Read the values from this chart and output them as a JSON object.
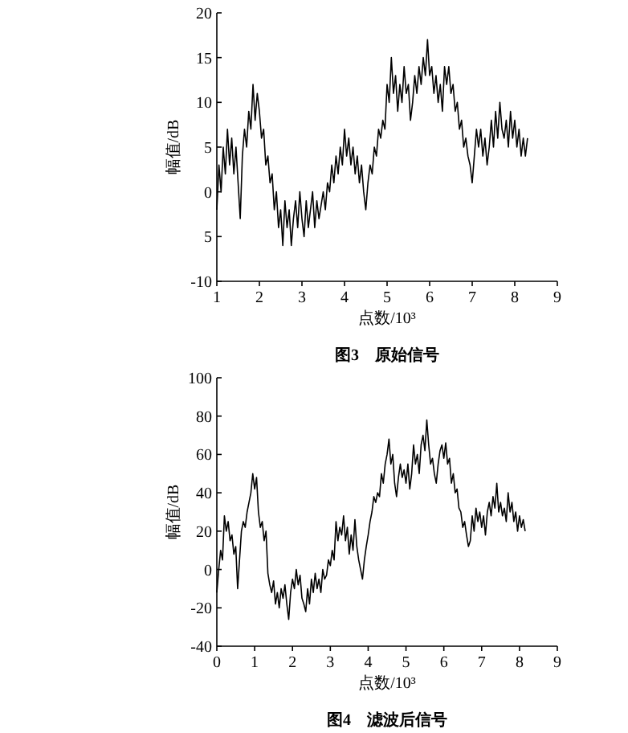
{
  "chart_data": [
    {
      "type": "line",
      "title": "图3　原始信号",
      "xlabel": "点数/10³",
      "ylabel": "幅值/dB",
      "xlim": [
        1,
        9
      ],
      "xticks": [
        1,
        2,
        3,
        4,
        5,
        6,
        7,
        8,
        9
      ],
      "ylim": [
        -10,
        20
      ],
      "yticks": [
        -10,
        {
          "value": -5,
          "label": "5"
        },
        0,
        5,
        10,
        15,
        20
      ],
      "grid": false,
      "marker": "none",
      "line_style": "solid",
      "series": [
        {
          "color": "#000000",
          "x": [
            1.0,
            1.05,
            1.1,
            1.15,
            1.2,
            1.25,
            1.3,
            1.35,
            1.4,
            1.45,
            1.5,
            1.55,
            1.6,
            1.65,
            1.7,
            1.75,
            1.8,
            1.85,
            1.9,
            1.95,
            2.0,
            2.05,
            2.1,
            2.15,
            2.2,
            2.25,
            2.3,
            2.35,
            2.4,
            2.45,
            2.5,
            2.55,
            2.6,
            2.65,
            2.7,
            2.75,
            2.8,
            2.85,
            2.9,
            2.95,
            3.0,
            3.05,
            3.1,
            3.15,
            3.2,
            3.25,
            3.3,
            3.35,
            3.4,
            3.5,
            3.55,
            3.6,
            3.65,
            3.7,
            3.75,
            3.8,
            3.85,
            3.9,
            3.95,
            4.0,
            4.05,
            4.1,
            4.15,
            4.2,
            4.25,
            4.3,
            4.35,
            4.4,
            4.45,
            4.5,
            4.55,
            4.6,
            4.65,
            4.7,
            4.75,
            4.8,
            4.85,
            4.9,
            4.95,
            5.0,
            5.05,
            5.1,
            5.15,
            5.2,
            5.25,
            5.3,
            5.35,
            5.4,
            5.45,
            5.5,
            5.55,
            5.6,
            5.65,
            5.7,
            5.75,
            5.8,
            5.85,
            5.9,
            5.95,
            6.0,
            6.05,
            6.1,
            6.15,
            6.2,
            6.25,
            6.3,
            6.35,
            6.4,
            6.45,
            6.5,
            6.55,
            6.6,
            6.65,
            6.7,
            6.75,
            6.8,
            6.85,
            6.9,
            6.95,
            7.0,
            7.05,
            7.1,
            7.15,
            7.2,
            7.25,
            7.3,
            7.35,
            7.4,
            7.45,
            7.5,
            7.55,
            7.6,
            7.65,
            7.7,
            7.75,
            7.8,
            7.85,
            7.9,
            7.95,
            8.0,
            8.05,
            8.1,
            8.15,
            8.2,
            8.25,
            8.3
          ],
          "values": [
            -2,
            3,
            0,
            5,
            2,
            7,
            3,
            6,
            2,
            5,
            1,
            -3,
            4,
            7,
            5,
            9,
            7,
            12,
            8,
            11,
            9,
            6,
            7,
            3,
            4,
            1,
            2,
            -2,
            0,
            -4,
            -2,
            -6,
            -1,
            -4,
            -2,
            -6,
            -3,
            -1,
            -4,
            0,
            -3,
            -5,
            -1,
            -4,
            -2,
            0,
            -4,
            -1,
            -3,
            0,
            -2,
            1,
            0,
            3,
            1,
            4,
            2,
            5,
            3,
            7,
            4,
            6,
            3,
            5,
            2,
            4,
            1,
            3,
            0,
            -2,
            1,
            3,
            2,
            5,
            4,
            7,
            6,
            8,
            7,
            12,
            10,
            15,
            11,
            13,
            9,
            12,
            10,
            14,
            11,
            12,
            8,
            10,
            13,
            11,
            14,
            12,
            15,
            13,
            17,
            13,
            14,
            11,
            13,
            10,
            12,
            9,
            14,
            12,
            14,
            11,
            12,
            9,
            10,
            7,
            8,
            5,
            6,
            4,
            3,
            1,
            4,
            7,
            5,
            7,
            4,
            6,
            3,
            5,
            8,
            5,
            9,
            6,
            10,
            7,
            6,
            8,
            5,
            9,
            6,
            8,
            5,
            7,
            4,
            6,
            4,
            6
          ]
        }
      ]
    },
    {
      "type": "line",
      "title": "图4　滤波后信号",
      "xlabel": "点数/10³",
      "ylabel": "幅值/dB",
      "xlim": [
        0,
        9
      ],
      "xticks": [
        0,
        1,
        2,
        3,
        4,
        5,
        6,
        7,
        8,
        9
      ],
      "ylim": [
        -40,
        100
      ],
      "yticks": [
        -40,
        -20,
        0,
        20,
        40,
        60,
        80,
        100
      ],
      "grid": false,
      "marker": "none",
      "line_style": "solid",
      "series": [
        {
          "color": "#000000",
          "x": [
            0,
            0.05,
            0.1,
            0.15,
            0.2,
            0.25,
            0.3,
            0.35,
            0.4,
            0.45,
            0.5,
            0.55,
            0.6,
            0.65,
            0.7,
            0.75,
            0.8,
            0.85,
            0.9,
            0.95,
            1.0,
            1.05,
            1.1,
            1.15,
            1.2,
            1.25,
            1.3,
            1.35,
            1.4,
            1.45,
            1.5,
            1.55,
            1.6,
            1.65,
            1.7,
            1.75,
            1.8,
            1.85,
            1.9,
            1.95,
            2.0,
            2.05,
            2.1,
            2.15,
            2.2,
            2.25,
            2.3,
            2.35,
            2.4,
            2.45,
            2.5,
            2.55,
            2.6,
            2.65,
            2.7,
            2.75,
            2.8,
            2.85,
            2.9,
            2.95,
            3.0,
            3.05,
            3.1,
            3.15,
            3.2,
            3.25,
            3.3,
            3.35,
            3.4,
            3.45,
            3.5,
            3.55,
            3.6,
            3.65,
            3.7,
            3.75,
            3.8,
            3.85,
            3.9,
            3.95,
            4.0,
            4.05,
            4.1,
            4.15,
            4.2,
            4.25,
            4.3,
            4.35,
            4.4,
            4.45,
            4.5,
            4.55,
            4.6,
            4.65,
            4.7,
            4.75,
            4.8,
            4.85,
            4.9,
            4.95,
            5.0,
            5.05,
            5.1,
            5.15,
            5.2,
            5.25,
            5.3,
            5.35,
            5.4,
            5.45,
            5.5,
            5.55,
            5.6,
            5.65,
            5.7,
            5.75,
            5.8,
            5.85,
            5.9,
            5.95,
            6.0,
            6.05,
            6.1,
            6.15,
            6.2,
            6.25,
            6.3,
            6.35,
            6.4,
            6.45,
            6.5,
            6.55,
            6.6,
            6.65,
            6.7,
            6.75,
            6.8,
            6.85,
            6.9,
            6.95,
            7.0,
            7.05,
            7.1,
            7.15,
            7.2,
            7.25,
            7.3,
            7.35,
            7.4,
            7.45,
            7.5,
            7.55,
            7.6,
            7.65,
            7.7,
            7.75,
            7.8,
            7.85,
            7.9,
            7.95,
            8.0,
            8.05,
            8.1,
            8.15
          ],
          "values": [
            -12,
            0,
            10,
            5,
            28,
            20,
            25,
            15,
            18,
            8,
            12,
            -10,
            5,
            20,
            25,
            22,
            30,
            35,
            40,
            50,
            42,
            48,
            30,
            22,
            25,
            15,
            20,
            -2,
            -8,
            -12,
            -6,
            -18,
            -12,
            -20,
            -10,
            -15,
            -8,
            -18,
            -26,
            -12,
            -5,
            -10,
            0,
            -8,
            -3,
            -15,
            -18,
            -22,
            -10,
            -18,
            -5,
            -12,
            -2,
            -10,
            -5,
            -12,
            0,
            -5,
            -3,
            5,
            2,
            10,
            5,
            25,
            15,
            22,
            18,
            28,
            15,
            22,
            8,
            18,
            10,
            26,
            12,
            5,
            0,
            -5,
            5,
            12,
            18,
            25,
            30,
            38,
            35,
            40,
            38,
            50,
            45,
            55,
            60,
            68,
            55,
            60,
            45,
            38,
            48,
            55,
            48,
            52,
            45,
            55,
            42,
            50,
            65,
            55,
            60,
            50,
            65,
            70,
            62,
            78,
            65,
            55,
            58,
            50,
            45,
            55,
            62,
            65,
            58,
            66,
            55,
            58,
            45,
            50,
            40,
            42,
            32,
            30,
            22,
            25,
            18,
            12,
            15,
            28,
            20,
            32,
            25,
            30,
            22,
            28,
            18,
            30,
            35,
            28,
            38,
            32,
            45,
            30,
            35,
            28,
            32,
            25,
            40,
            30,
            35,
            25,
            30,
            20,
            28,
            22,
            26,
            20
          ]
        }
      ]
    }
  ]
}
